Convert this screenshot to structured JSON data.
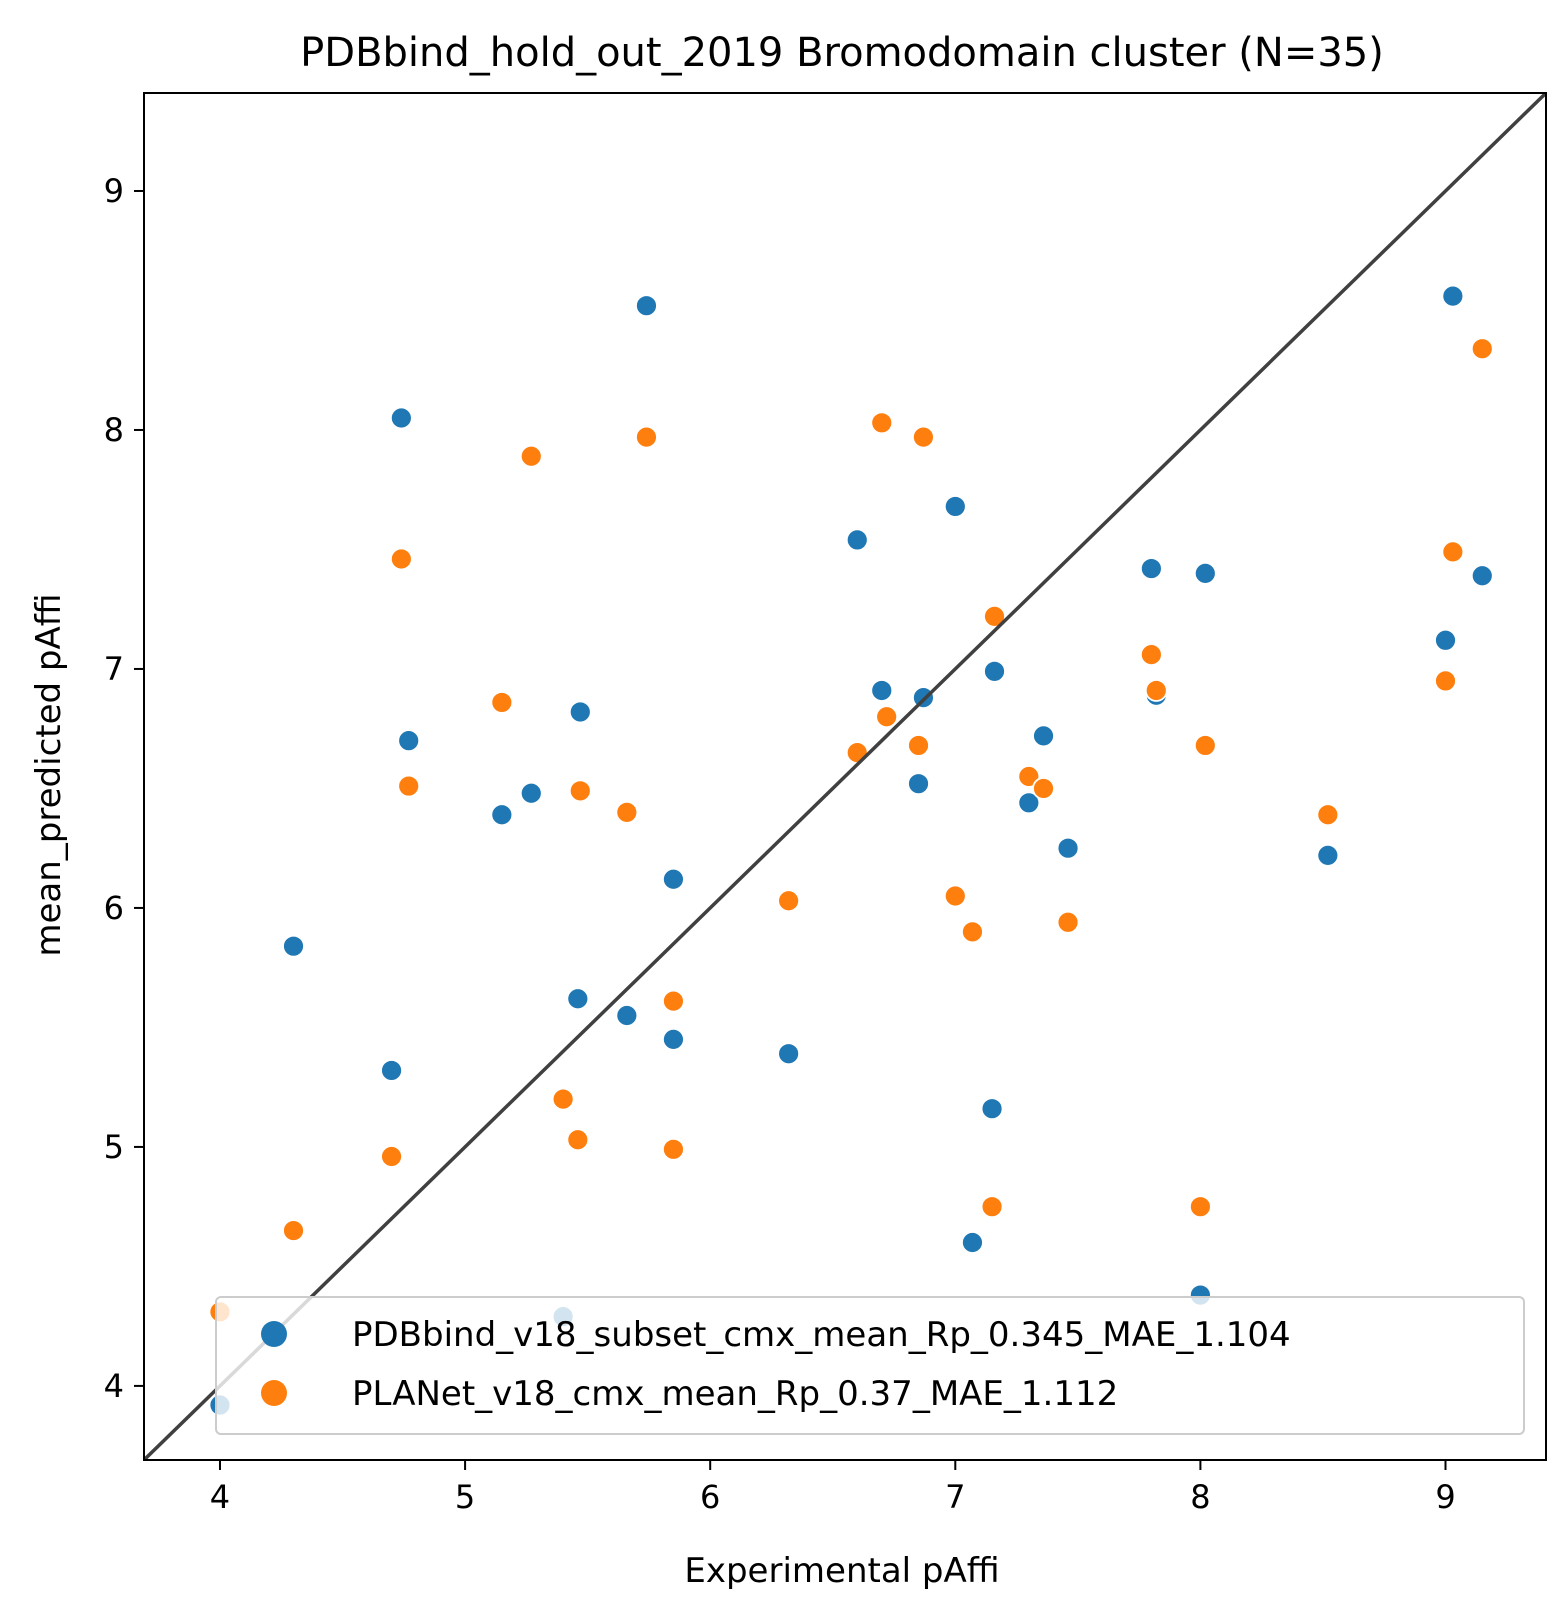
{
  "chart_data": {
    "type": "scatter",
    "title": "PDBbind_hold_out_2019 Bromodomain cluster (N=35)",
    "xlabel": "Experimental pAffi",
    "ylabel": "mean_predicted pAffi",
    "xlim": [
      3.69,
      9.41
    ],
    "ylim": [
      3.69,
      9.41
    ],
    "xticks": [
      "4",
      "5",
      "6",
      "7",
      "8",
      "9"
    ],
    "yticks": [
      "4",
      "5",
      "6",
      "7",
      "8",
      "9"
    ],
    "grid": false,
    "legend_position": "lower right",
    "identity_line": true,
    "identity_line_color": "#404040",
    "series": [
      {
        "name": "PDBbind_v18_subset_cmx_mean_Rp_0.345_MAE_1.104",
        "color": "#1f77b4",
        "points": [
          [
            4.0,
            3.92
          ],
          [
            4.3,
            5.84
          ],
          [
            4.7,
            5.32
          ],
          [
            4.74,
            8.05
          ],
          [
            4.77,
            6.7
          ],
          [
            5.15,
            6.39
          ],
          [
            5.27,
            6.48
          ],
          [
            5.4,
            4.29
          ],
          [
            5.46,
            5.62
          ],
          [
            5.47,
            6.82
          ],
          [
            5.66,
            5.55
          ],
          [
            5.74,
            8.52
          ],
          [
            5.85,
            5.45
          ],
          [
            5.85,
            6.12
          ],
          [
            6.32,
            5.39
          ],
          [
            6.6,
            7.54
          ],
          [
            6.7,
            6.91
          ],
          [
            6.72,
            6.8
          ],
          [
            6.85,
            6.52
          ],
          [
            6.87,
            6.88
          ],
          [
            7.0,
            7.68
          ],
          [
            7.07,
            4.6
          ],
          [
            7.15,
            5.16
          ],
          [
            7.16,
            6.99
          ],
          [
            7.3,
            6.44
          ],
          [
            7.36,
            6.72
          ],
          [
            7.46,
            6.25
          ],
          [
            7.8,
            7.42
          ],
          [
            7.82,
            6.89
          ],
          [
            8.0,
            4.38
          ],
          [
            8.02,
            7.4
          ],
          [
            8.52,
            6.22
          ],
          [
            9.0,
            7.12
          ],
          [
            9.03,
            8.56
          ],
          [
            9.15,
            7.39
          ]
        ]
      },
      {
        "name": "PLANet_v18_cmx_mean_Rp_0.37_MAE_1.112",
        "color": "#ff7f0e",
        "points": [
          [
            4.0,
            4.31
          ],
          [
            4.3,
            4.65
          ],
          [
            4.7,
            4.96
          ],
          [
            4.74,
            7.46
          ],
          [
            4.77,
            6.51
          ],
          [
            5.15,
            6.86
          ],
          [
            5.27,
            7.89
          ],
          [
            5.4,
            5.2
          ],
          [
            5.46,
            5.03
          ],
          [
            5.47,
            6.49
          ],
          [
            5.66,
            6.4
          ],
          [
            5.74,
            7.97
          ],
          [
            5.85,
            4.99
          ],
          [
            5.85,
            5.61
          ],
          [
            6.32,
            6.03
          ],
          [
            6.6,
            6.65
          ],
          [
            6.7,
            8.03
          ],
          [
            6.72,
            6.8
          ],
          [
            6.85,
            6.68
          ],
          [
            6.87,
            7.97
          ],
          [
            7.0,
            6.05
          ],
          [
            7.07,
            5.9
          ],
          [
            7.15,
            4.75
          ],
          [
            7.16,
            7.22
          ],
          [
            7.3,
            6.55
          ],
          [
            7.36,
            6.5
          ],
          [
            7.46,
            5.94
          ],
          [
            7.8,
            7.06
          ],
          [
            7.82,
            6.91
          ],
          [
            8.0,
            4.75
          ],
          [
            8.02,
            6.68
          ],
          [
            8.52,
            6.39
          ],
          [
            9.0,
            6.95
          ],
          [
            9.03,
            7.49
          ],
          [
            9.15,
            8.34
          ]
        ]
      }
    ]
  }
}
